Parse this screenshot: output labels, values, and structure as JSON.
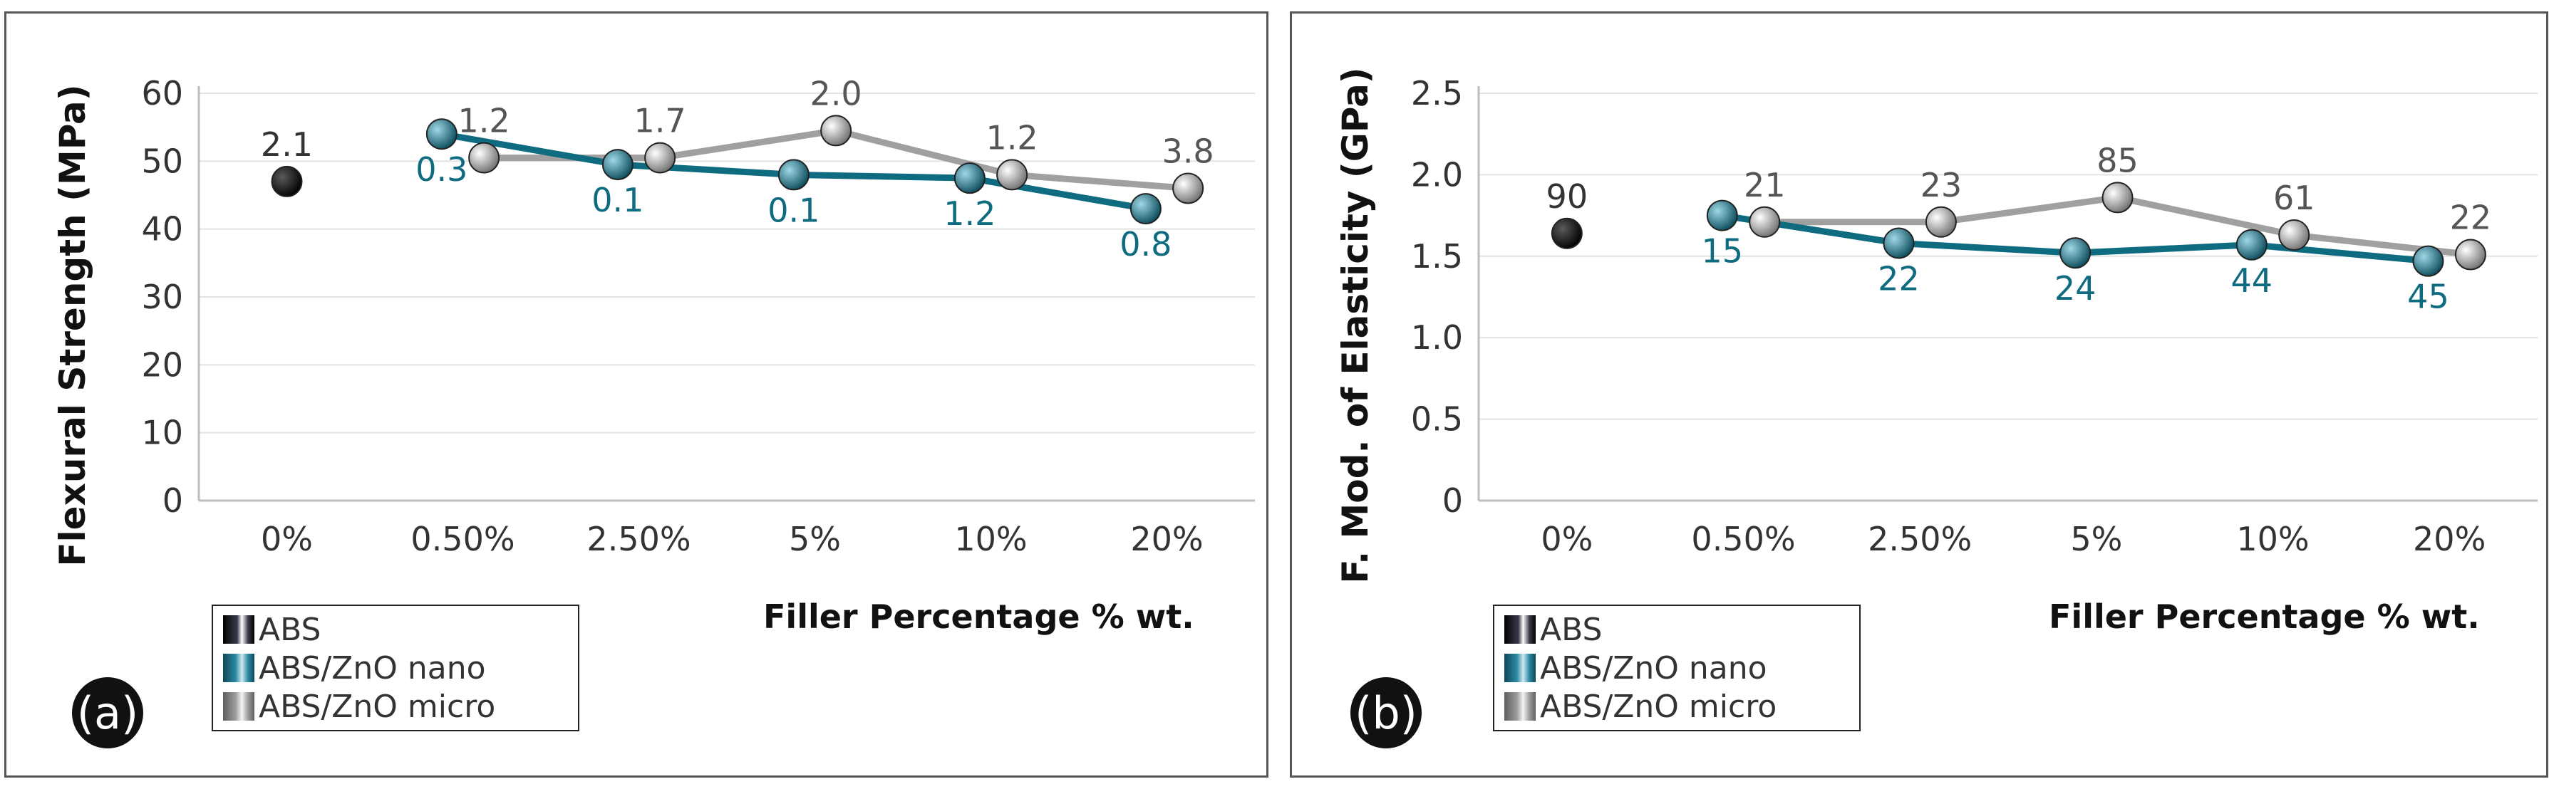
{
  "chart_data": [
    {
      "type": "line",
      "panel_label": "(a)",
      "ylabel": "Flexural Strength (MPa)",
      "xlabel": "Filler Percentage % wt.",
      "categories": [
        "0%",
        "0.50%",
        "2.50%",
        "5%",
        "10%",
        "20%"
      ],
      "ylim": [
        0,
        60
      ],
      "yticks": [
        "0",
        "10",
        "20",
        "30",
        "40",
        "50",
        "60"
      ],
      "grid": true,
      "legend_position": "bottom-left",
      "legend": [
        "ABS",
        "ABS/ZnO nano",
        "ABS/ZnO micro"
      ],
      "series": [
        {
          "name": "ABS",
          "values": [
            47,
            null,
            null,
            null,
            null,
            null
          ],
          "labels": [
            "2.1",
            "",
            "",
            "",
            "",
            ""
          ],
          "color": "#111111"
        },
        {
          "name": "ABS/ZnO nano",
          "values": [
            null,
            54,
            49.5,
            48,
            47.5,
            43
          ],
          "labels": [
            "",
            "0.3",
            "0.1",
            "0.1",
            "1.2",
            "0.8"
          ],
          "color": "#0e6b80"
        },
        {
          "name": "ABS/ZnO micro",
          "values": [
            null,
            50.5,
            50.5,
            54.5,
            48,
            46
          ],
          "labels": [
            "",
            "1.2",
            "1.7",
            "2.0",
            "1.2",
            "3.8"
          ],
          "color": "#a0a0a0"
        }
      ]
    },
    {
      "type": "line",
      "panel_label": "(b)",
      "ylabel": "F. Mod. of Elasticity (GPa)",
      "xlabel": "Filler Percentage % wt.",
      "categories": [
        "0%",
        "0.50%",
        "2.50%",
        "5%",
        "10%",
        "20%"
      ],
      "ylim": [
        0,
        2.5
      ],
      "yticks": [
        "0",
        "0.5",
        "1.0",
        "1.5",
        "2.0",
        "2.5"
      ],
      "grid": true,
      "legend_position": "bottom-left",
      "legend": [
        "ABS",
        "ABS/ZnO nano",
        "ABS/ZnO micro"
      ],
      "series": [
        {
          "name": "ABS",
          "values": [
            1.64,
            null,
            null,
            null,
            null,
            null
          ],
          "labels": [
            "90",
            "",
            "",
            "",
            "",
            ""
          ],
          "color": "#111111"
        },
        {
          "name": "ABS/ZnO nano",
          "values": [
            null,
            1.75,
            1.58,
            1.52,
            1.57,
            1.47
          ],
          "labels": [
            "",
            "15",
            "22",
            "24",
            "44",
            "45"
          ],
          "color": "#0e6b80"
        },
        {
          "name": "ABS/ZnO micro",
          "values": [
            null,
            1.71,
            1.71,
            1.86,
            1.63,
            1.51
          ],
          "labels": [
            "",
            "21",
            "23",
            "85",
            "61",
            "22"
          ],
          "color": "#a0a0a0"
        }
      ]
    }
  ]
}
